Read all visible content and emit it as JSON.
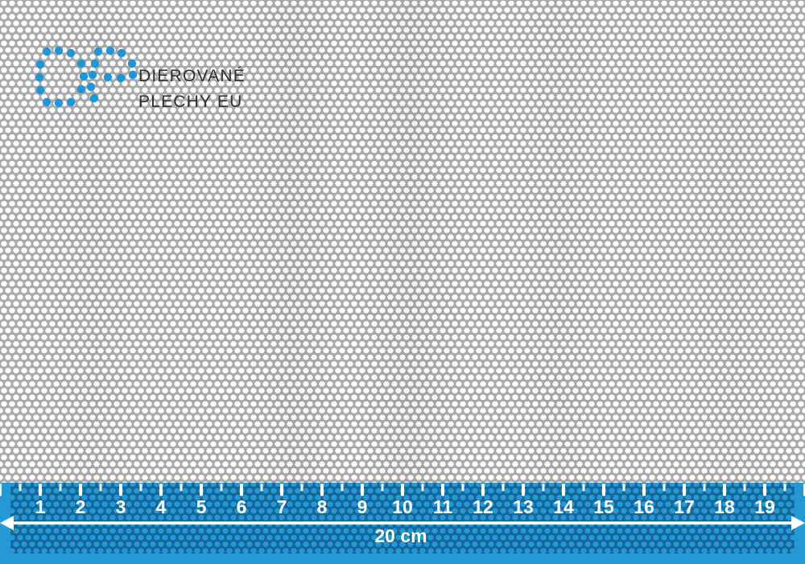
{
  "brand": {
    "logo_text_line1": "DIEROVANÉ",
    "logo_text_line2": "PLECHY EU"
  },
  "ruler": {
    "numbers": [
      "1",
      "2",
      "3",
      "4",
      "5",
      "6",
      "7",
      "8",
      "9",
      "10",
      "11",
      "12",
      "13",
      "14",
      "15",
      "16",
      "17",
      "18",
      "19"
    ],
    "total_label": "20 cm"
  },
  "colors": {
    "accent_blue": "#2196d4",
    "ruler_hole_blue": "#2499d6",
    "ruler_web_blue": "#15689a",
    "sheet_web_gray": "#acacac",
    "hole_white": "#ffffff",
    "logo_text_color": "#2f2f2f",
    "tick_white": "#ffffff"
  },
  "icons": {
    "logo": "dp-dot-matrix-logo-icon",
    "arrow": "double-headed-dimension-arrow-icon"
  }
}
